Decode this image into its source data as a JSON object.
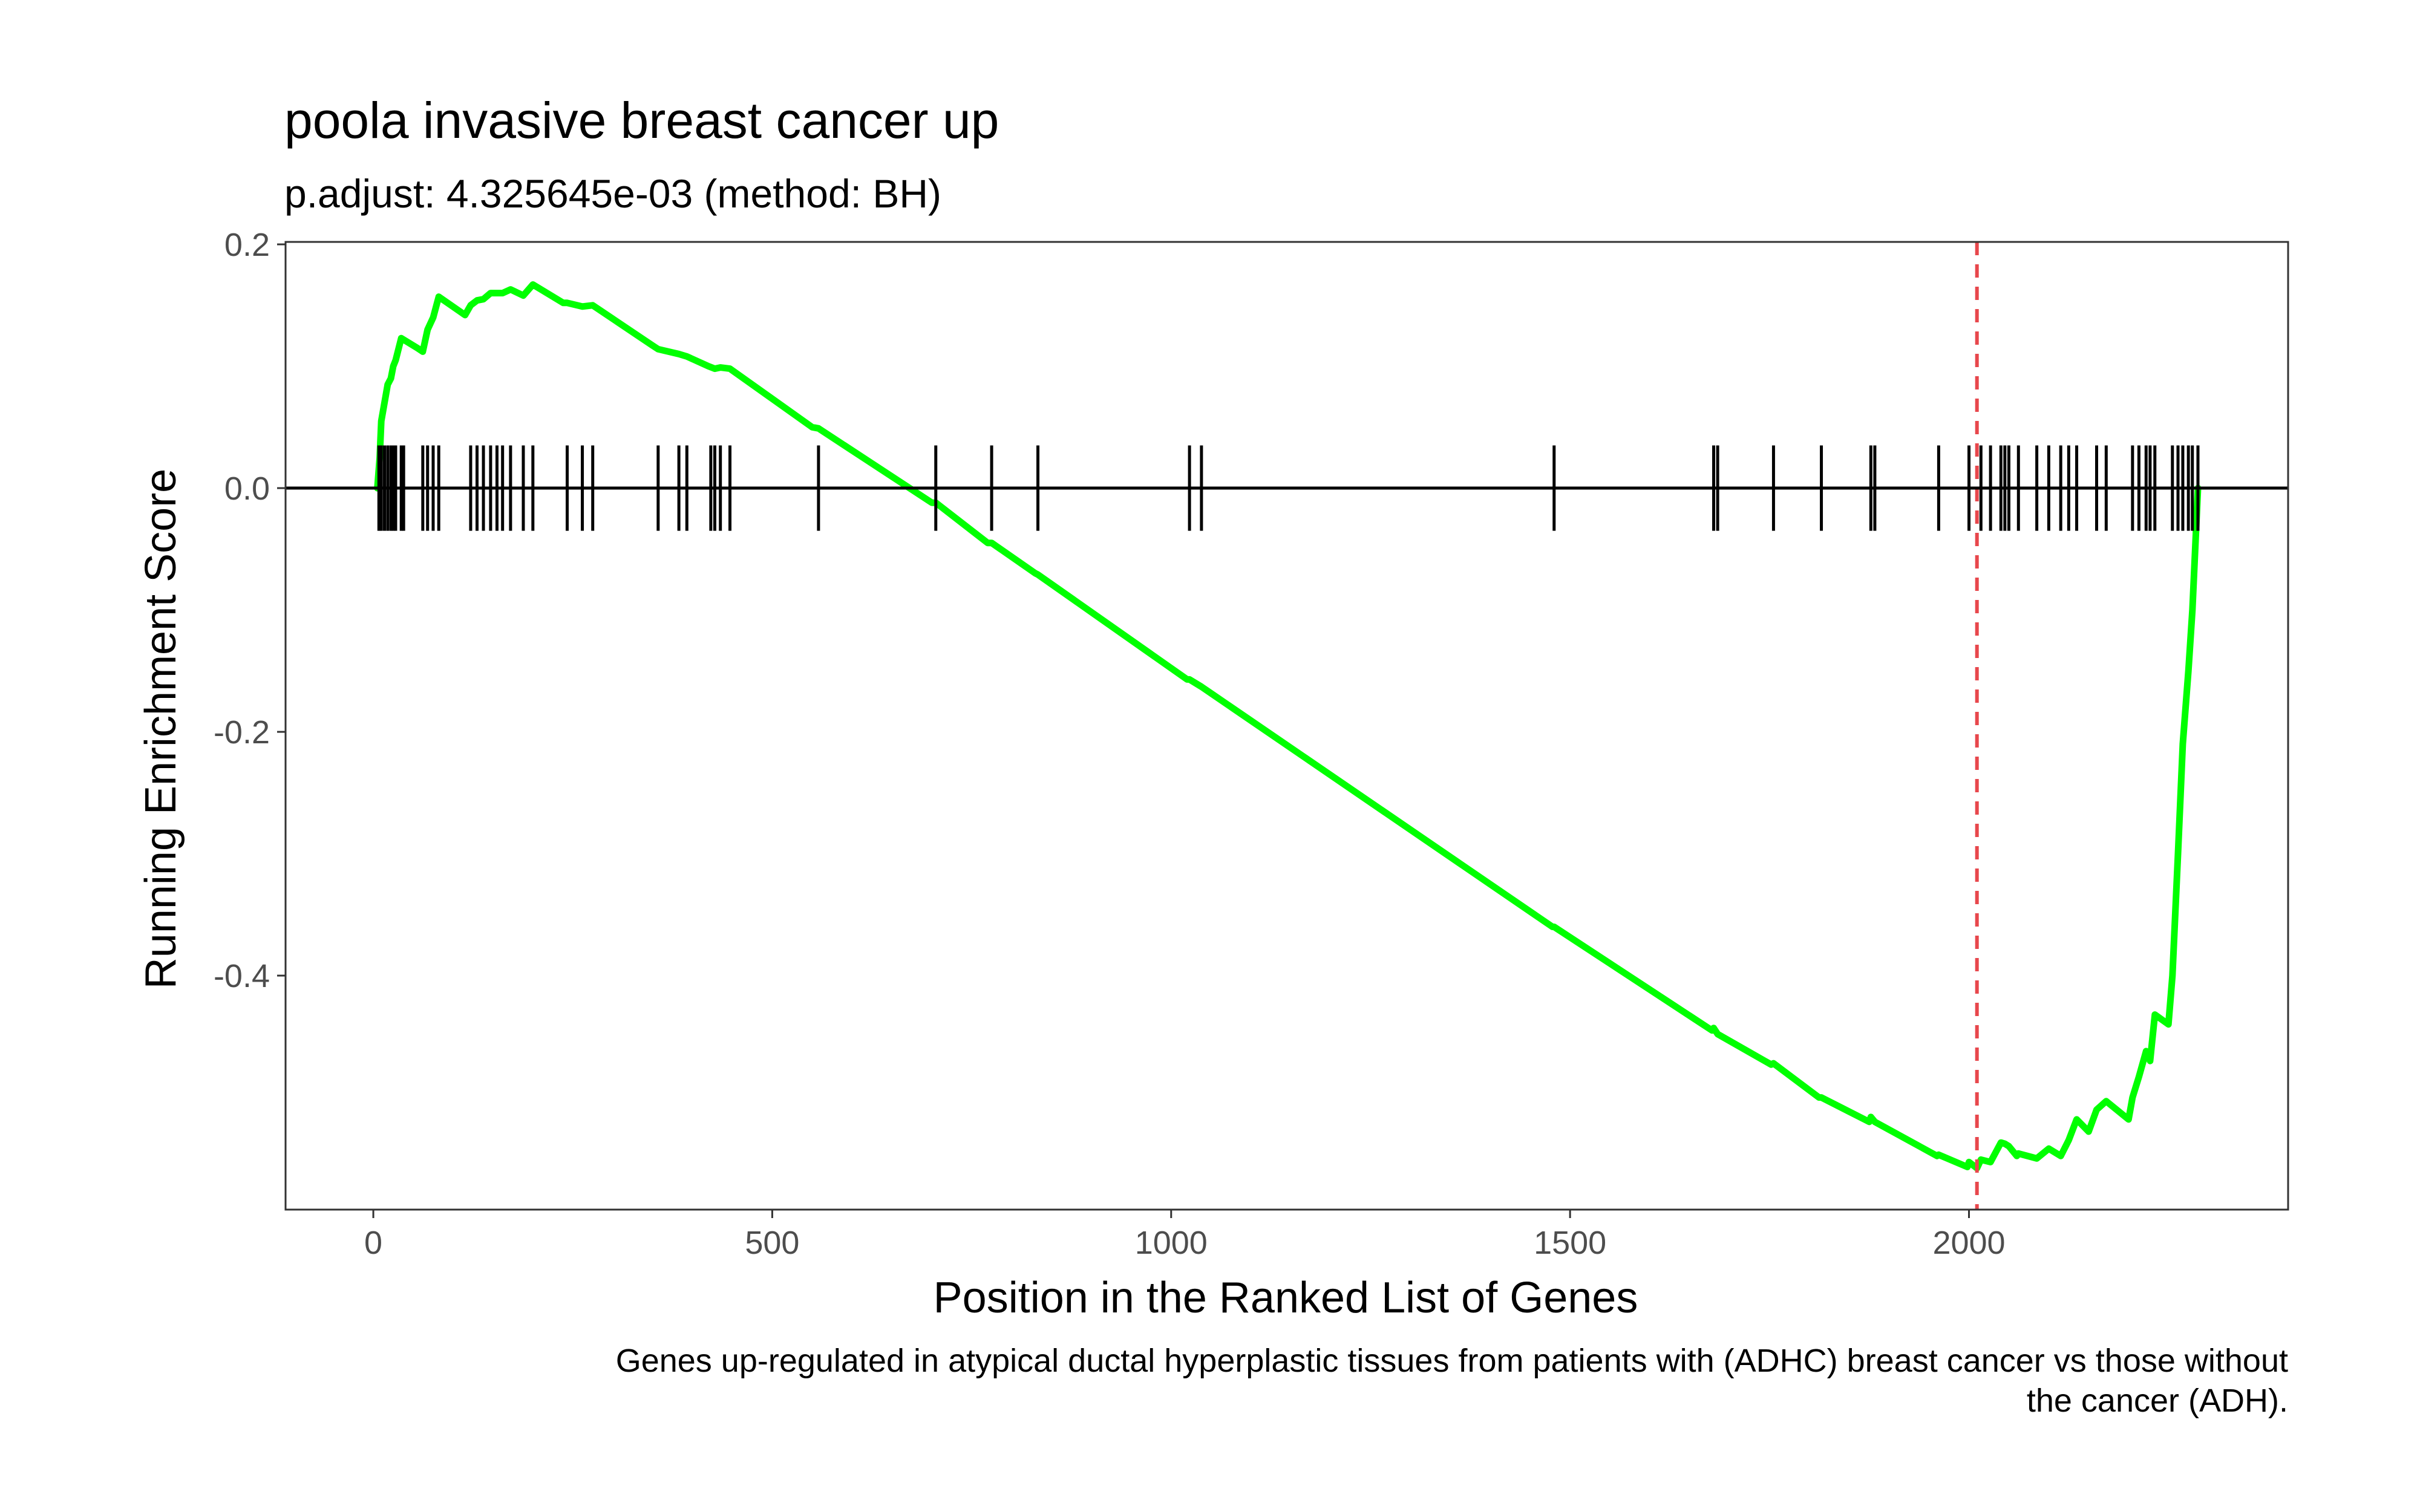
{
  "chart_data": {
    "type": "line",
    "title": "poola invasive breast cancer up",
    "subtitle": "p.adjust: 4.325645e-03 (method: BH)",
    "xlabel": "Position in the Ranked List of Genes",
    "ylabel": "Running Enrichment Score",
    "caption_lines": [
      "Genes up-regulated in atypical ductal hyperplastic tissues from patients with (ADHC) breast cancer vs those without",
      "the cancer (ADH)."
    ],
    "xlim": [
      -110,
      2400
    ],
    "ylim": [
      -0.592,
      0.202
    ],
    "x_ticks": [
      0,
      500,
      1000,
      1500,
      2000
    ],
    "x_tick_labels": [
      "0",
      "500",
      "1000",
      "1500",
      "2000"
    ],
    "y_ticks": [
      0.2,
      0.0,
      -0.2,
      -0.4
    ],
    "y_tick_labels": [
      "0.2",
      "0.0",
      "-0.2",
      "-0.4"
    ],
    "grid": false,
    "colors": {
      "curve": "#00ff00",
      "peak_line": "#e8474c",
      "rug": "#000000",
      "zero_line": "#000000"
    },
    "peak_position": 2010,
    "gene_hits": [
      7,
      10,
      14,
      18,
      22,
      25,
      28,
      35,
      38,
      62,
      68,
      75,
      82,
      122,
      130,
      138,
      147,
      155,
      162,
      172,
      188,
      200,
      243,
      262,
      275,
      357,
      383,
      393,
      423,
      428,
      435,
      447,
      558,
      705,
      775,
      833,
      1023,
      1038,
      1480,
      1680,
      1685,
      1755,
      1815,
      1877,
      1882,
      1962,
      2000,
      2015,
      2027,
      2040,
      2045,
      2050,
      2062,
      2085,
      2100,
      2115,
      2125,
      2135,
      2160,
      2172,
      2205,
      2213,
      2222,
      2227,
      2233,
      2255,
      2262,
      2268,
      2275,
      2280,
      2287
    ],
    "series": [
      {
        "values": [
          [
            5,
            0.0
          ],
          [
            8,
            0.025
          ],
          [
            10,
            0.055
          ],
          [
            14,
            0.07
          ],
          [
            18,
            0.085
          ],
          [
            22,
            0.09
          ],
          [
            25,
            0.1
          ],
          [
            28,
            0.105
          ],
          [
            35,
            0.123
          ],
          [
            55,
            0.115
          ],
          [
            62,
            0.112
          ],
          [
            68,
            0.13
          ],
          [
            75,
            0.14
          ],
          [
            82,
            0.157
          ],
          [
            115,
            0.142
          ],
          [
            122,
            0.15
          ],
          [
            130,
            0.154
          ],
          [
            138,
            0.155
          ],
          [
            147,
            0.16
          ],
          [
            155,
            0.16
          ],
          [
            162,
            0.16
          ],
          [
            172,
            0.163
          ],
          [
            188,
            0.158
          ],
          [
            200,
            0.167
          ],
          [
            238,
            0.152
          ],
          [
            243,
            0.152
          ],
          [
            262,
            0.149
          ],
          [
            275,
            0.15
          ],
          [
            350,
            0.117
          ],
          [
            357,
            0.114
          ],
          [
            383,
            0.11
          ],
          [
            393,
            0.108
          ],
          [
            420,
            0.1
          ],
          [
            428,
            0.098
          ],
          [
            435,
            0.099
          ],
          [
            447,
            0.098
          ],
          [
            550,
            0.05
          ],
          [
            558,
            0.049
          ],
          [
            700,
            -0.012
          ],
          [
            705,
            -0.012
          ],
          [
            770,
            -0.045
          ],
          [
            775,
            -0.045
          ],
          [
            830,
            -0.07
          ],
          [
            833,
            -0.071
          ],
          [
            1020,
            -0.157
          ],
          [
            1023,
            -0.157
          ],
          [
            1038,
            -0.163
          ],
          [
            1478,
            -0.36
          ],
          [
            1480,
            -0.36
          ],
          [
            1678,
            -0.445
          ],
          [
            1680,
            -0.443
          ],
          [
            1685,
            -0.448
          ],
          [
            1752,
            -0.473
          ],
          [
            1755,
            -0.472
          ],
          [
            1812,
            -0.5
          ],
          [
            1815,
            -0.5
          ],
          [
            1875,
            -0.52
          ],
          [
            1877,
            -0.516
          ],
          [
            1882,
            -0.52
          ],
          [
            1960,
            -0.548
          ],
          [
            1962,
            -0.547
          ],
          [
            1998,
            -0.557
          ],
          [
            2000,
            -0.553
          ],
          [
            2010,
            -0.558
          ],
          [
            2015,
            -0.551
          ],
          [
            2027,
            -0.553
          ],
          [
            2040,
            -0.537
          ],
          [
            2045,
            -0.538
          ],
          [
            2050,
            -0.54
          ],
          [
            2060,
            -0.548
          ],
          [
            2062,
            -0.546
          ],
          [
            2085,
            -0.55
          ],
          [
            2100,
            -0.542
          ],
          [
            2115,
            -0.548
          ],
          [
            2125,
            -0.535
          ],
          [
            2135,
            -0.518
          ],
          [
            2150,
            -0.528
          ],
          [
            2160,
            -0.51
          ],
          [
            2172,
            -0.503
          ],
          [
            2200,
            -0.518
          ],
          [
            2205,
            -0.5
          ],
          [
            2213,
            -0.483
          ],
          [
            2222,
            -0.462
          ],
          [
            2227,
            -0.47
          ],
          [
            2233,
            -0.432
          ],
          [
            2250,
            -0.44
          ],
          [
            2255,
            -0.4
          ],
          [
            2262,
            -0.3
          ],
          [
            2268,
            -0.21
          ],
          [
            2275,
            -0.15
          ],
          [
            2280,
            -0.1
          ],
          [
            2287,
            0.0
          ]
        ]
      }
    ]
  }
}
